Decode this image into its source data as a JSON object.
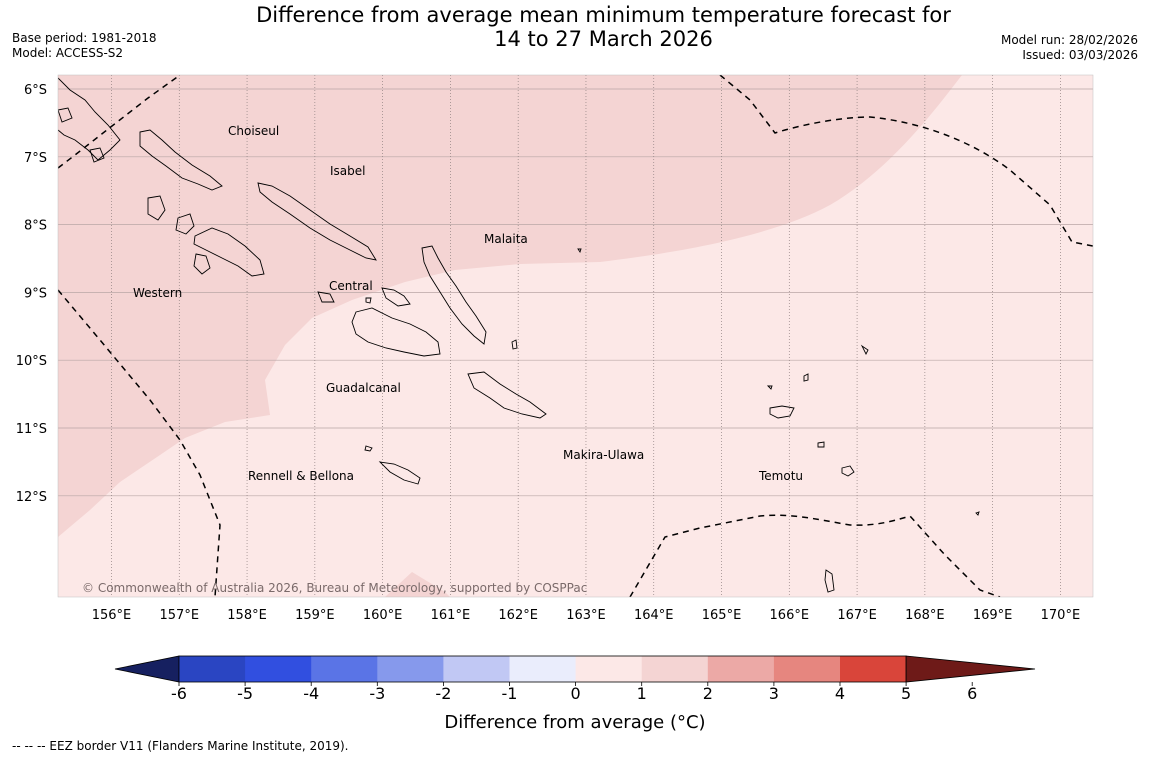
{
  "header": {
    "title_line1": "Difference from average mean minimum temperature forecast for",
    "title_line2": "14 to 27 March 2026",
    "base_period": "Base period: 1981-2018",
    "model": "Model: ACCESS-S2",
    "model_run": "Model run: 28/02/2026",
    "issued": "Issued: 03/03/2026"
  },
  "map": {
    "lat_labels": [
      "6°S",
      "7°S",
      "8°S",
      "9°S",
      "10°S",
      "11°S",
      "12°S"
    ],
    "lon_labels": [
      "156°E",
      "157°E",
      "158°E",
      "159°E",
      "160°E",
      "161°E",
      "162°E",
      "163°E",
      "164°E",
      "165°E",
      "166°E",
      "167°E",
      "168°E",
      "169°E",
      "170°E"
    ],
    "province_labels": [
      "Choiseul",
      "Isabel",
      "Malaita",
      "Western",
      "Central",
      "Guadalcanal",
      "Makira-Ulawa",
      "Rennell & Bellona",
      "Temotu"
    ],
    "copyright": "© Commonwealth of Australia 2026, Bureau of Meteorology, supported by COSPPac",
    "colors": {
      "band_0_1": "#fce8e7",
      "band_1_2": "#f4d4d3",
      "coast": "#000000"
    }
  },
  "colorbar": {
    "ticks": [
      "-6",
      "-5",
      "-4",
      "-3",
      "-2",
      "-1",
      "0",
      "1",
      "2",
      "3",
      "4",
      "5",
      "6"
    ],
    "colors": [
      "#233a9a",
      "#2a45c2",
      "#314fe0",
      "#5a74e6",
      "#8699ec",
      "#c1c8f4",
      "#eaedfc",
      "#fce8e7",
      "#f4d4d3",
      "#eca9a6",
      "#e6867f",
      "#d9453a",
      "#a92520"
    ],
    "under_color": "#162060",
    "over_color": "#6e1a18",
    "label": "Difference from average (°C)"
  },
  "footnote": "--  --  -- EEZ border V11 (Flanders Marine Institute, 2019)."
}
